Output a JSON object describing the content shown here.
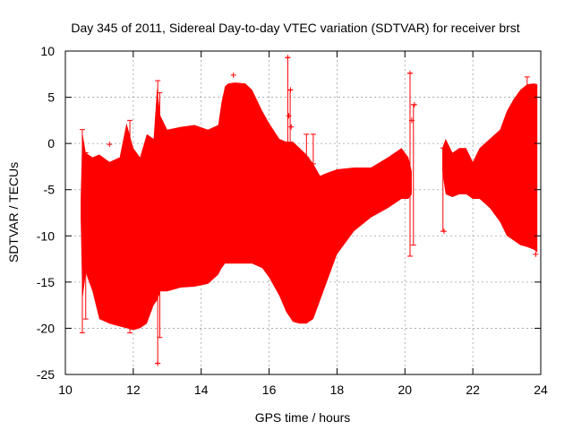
{
  "chart_data": {
    "type": "area",
    "title": "Day 345 of 2011, Sidereal Day-to-day VTEC variation (SDTVAR) for receiver brst",
    "xlabel": "GPS time / hours",
    "ylabel": "SDTVAR / TECUs",
    "xlim": [
      10,
      24
    ],
    "ylim": [
      -25,
      10
    ],
    "xticks": [
      10,
      12,
      14,
      16,
      18,
      20,
      22,
      24
    ],
    "yticks": [
      -25,
      -20,
      -15,
      -10,
      -5,
      0,
      5,
      10
    ],
    "grid": true,
    "series_color": "#ff0000",
    "segments": [
      {
        "name": "10.45-20.2 h",
        "x": [
          10.45,
          10.5,
          10.6,
          10.8,
          11.0,
          11.3,
          11.6,
          11.8,
          12.0,
          12.2,
          12.4,
          12.6,
          12.7,
          12.8,
          13.0,
          13.4,
          13.8,
          14.2,
          14.5,
          14.6,
          14.7,
          14.8,
          15.0,
          15.3,
          15.5,
          15.8,
          16.0,
          16.3,
          16.5,
          16.7,
          16.9,
          17.1,
          17.3,
          17.5,
          17.7,
          18.0,
          18.5,
          19.0,
          19.5,
          19.9,
          20.1,
          20.2
        ],
        "upper": [
          -6,
          1.2,
          -1,
          -1.5,
          -1.2,
          -2,
          -1.5,
          2.2,
          -0.5,
          -1.5,
          1,
          0.5,
          6,
          3,
          1.5,
          1.8,
          2,
          1.5,
          2,
          4.5,
          6.2,
          6.5,
          6.6,
          6.5,
          5.8,
          3.5,
          2.2,
          0.5,
          0.2,
          0.2,
          -0.5,
          -1.2,
          -2.2,
          -3.5,
          -3.2,
          -2.8,
          -2.6,
          -2.6,
          -1.5,
          -0.5,
          -1.5,
          -3
        ],
        "lower": [
          -8,
          -17,
          -14,
          -16,
          -19,
          -19.5,
          -19.8,
          -20,
          -20.2,
          -20,
          -19.5,
          -17.5,
          -17,
          -16,
          -16,
          -15.6,
          -15.5,
          -15.2,
          -14.2,
          -13.5,
          -13,
          -13,
          -13,
          -13,
          -13,
          -13.5,
          -14.5,
          -16.5,
          -18.2,
          -19.3,
          -19.5,
          -19.5,
          -19,
          -17,
          -15,
          -12,
          -9.5,
          -8,
          -7,
          -6,
          -6,
          -5.5
        ]
      },
      {
        "name": "21.1-23.9 h",
        "x": [
          21.1,
          21.2,
          21.4,
          21.6,
          21.8,
          22.0,
          22.2,
          22.5,
          22.8,
          23.0,
          23.2,
          23.4,
          23.6,
          23.8,
          23.9
        ],
        "upper": [
          -0.5,
          0.5,
          -1,
          -0.5,
          -0.5,
          -2,
          -0.5,
          0.5,
          1.5,
          3.5,
          4.8,
          5.8,
          6.4,
          6.5,
          6.4
        ],
        "lower": [
          -3,
          -5.5,
          -5.8,
          -5.5,
          -5.5,
          -6,
          -6,
          -7,
          -8.5,
          -10,
          -10.5,
          -11,
          -11.2,
          -11.5,
          -11.8
        ]
      }
    ],
    "error_bars": [
      {
        "x": 10.5,
        "low": -20.5,
        "high": 1.5
      },
      {
        "x": 10.6,
        "low": -19.0,
        "high": -1.0
      },
      {
        "x": 11.9,
        "low": -20.5,
        "high": 2.5
      },
      {
        "x": 12.72,
        "low": -23.8,
        "high": 6.8
      },
      {
        "x": 12.78,
        "low": -21.0,
        "high": 5.5
      },
      {
        "x": 16.55,
        "low": 0.0,
        "high": 9.3
      },
      {
        "x": 16.62,
        "low": -1.0,
        "high": 5.8
      },
      {
        "x": 17.1,
        "low": -1.5,
        "high": 1.0
      },
      {
        "x": 17.3,
        "low": -2.2,
        "high": 1.0
      },
      {
        "x": 20.15,
        "low": -12.2,
        "high": 7.6
      },
      {
        "x": 20.25,
        "low": -11.0,
        "high": 4.2
      },
      {
        "x": 21.12,
        "low": -9.5,
        "high": -0.5
      },
      {
        "x": 23.6,
        "low": -11.0,
        "high": 7.2
      }
    ],
    "outliers": [
      {
        "x": 16.55,
        "y": 9.3
      },
      {
        "x": 16.63,
        "y": 5.8
      },
      {
        "x": 16.58,
        "y": 3.0
      },
      {
        "x": 16.65,
        "y": 1.8
      },
      {
        "x": 20.15,
        "y": 7.6
      },
      {
        "x": 20.28,
        "y": 4.2
      },
      {
        "x": 20.2,
        "y": 2.5
      },
      {
        "x": 14.95,
        "y": 7.4
      },
      {
        "x": 11.3,
        "y": -0.1
      },
      {
        "x": 12.72,
        "y": -23.8
      },
      {
        "x": 21.15,
        "y": -9.5
      },
      {
        "x": 23.85,
        "y": -12.0
      }
    ]
  }
}
